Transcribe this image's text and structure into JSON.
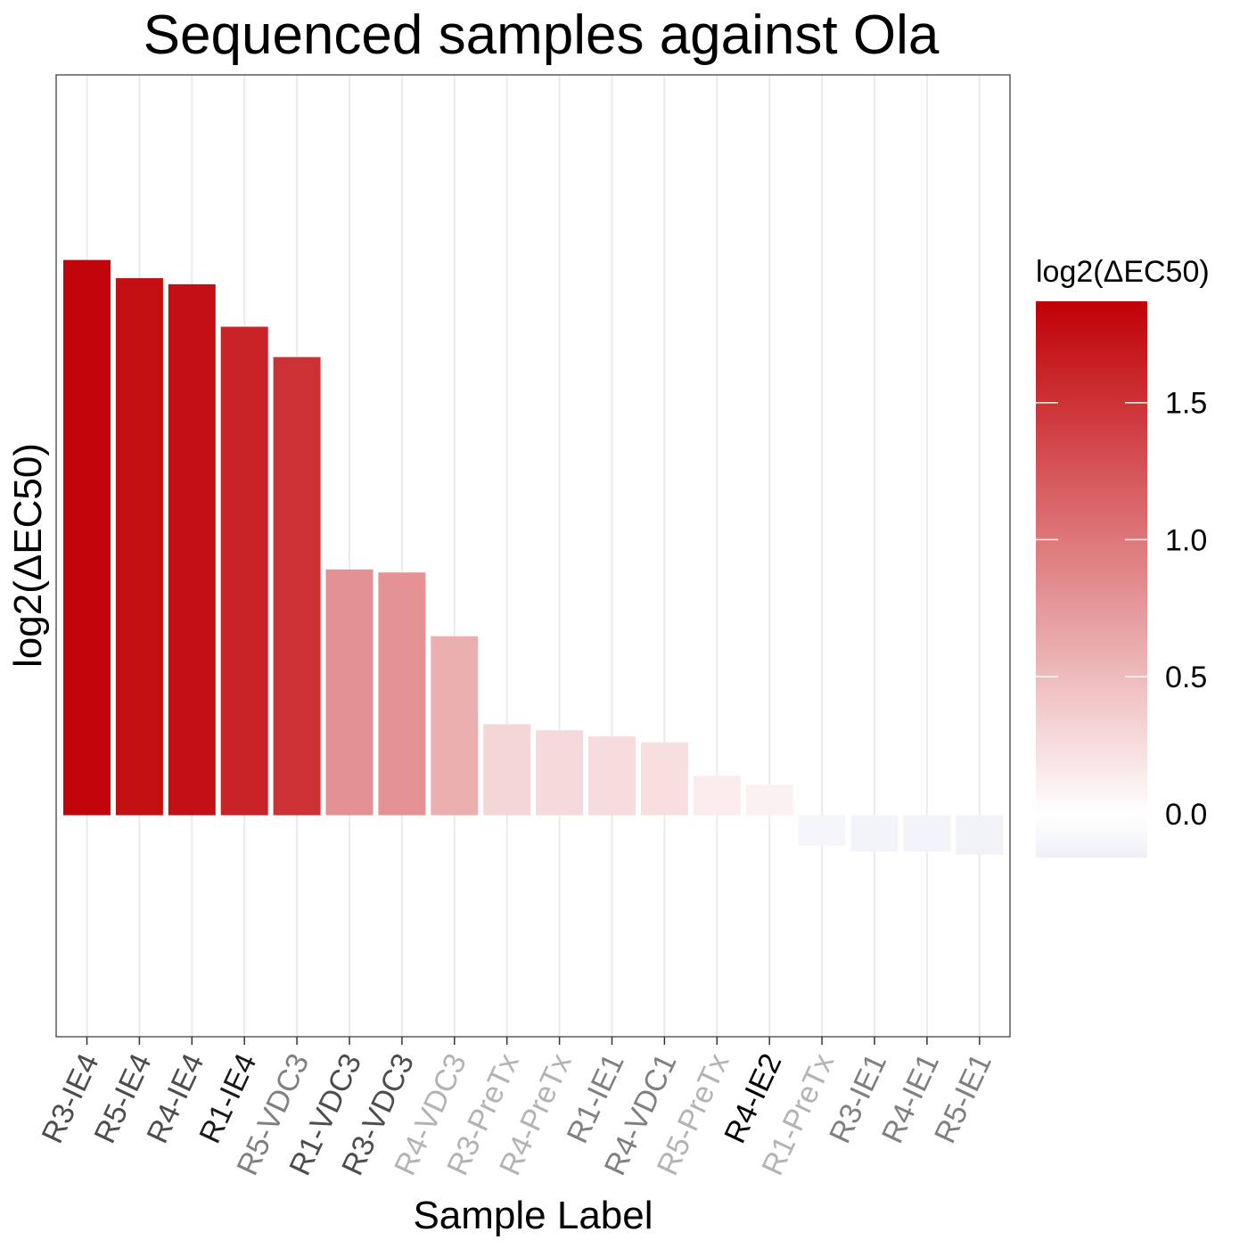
{
  "chart_data": {
    "type": "bar",
    "title": "Sequenced samples against Ola",
    "xlabel": "Sample Label",
    "ylabel": "log2(ΔEC50)",
    "categories": [
      "R3-IE4",
      "R5-IE4",
      "R4-IE4",
      "R1-IE4",
      "R5-VDC3",
      "R1-VDC3",
      "R3-VDC3",
      "R4-VDC3",
      "R3-PreTx",
      "R4-PreTx",
      "R1-IE1",
      "R4-VDC1",
      "R5-PreTx",
      "R4-IE2",
      "R1-PreTx",
      "R3-IE1",
      "R4-IE1",
      "R5-IE1"
    ],
    "values": [
      1.83,
      1.77,
      1.75,
      1.61,
      1.51,
      0.81,
      0.8,
      0.59,
      0.3,
      0.28,
      0.26,
      0.24,
      0.13,
      0.1,
      -0.1,
      -0.12,
      -0.12,
      -0.13
    ],
    "label_colors": [
      "#4d4d4d",
      "#4d4d4d",
      "#4d4d4d",
      "#1a1a1a",
      "#808080",
      "#4d4d4d",
      "#4d4d4d",
      "#b3b3b3",
      "#b3b3b3",
      "#b3b3b3",
      "#808080",
      "#808080",
      "#b3b3b3",
      "#000000",
      "#b3b3b3",
      "#808080",
      "#808080",
      "#808080"
    ],
    "ylim": [
      -0.73,
      2.44
    ],
    "grid": "vertical major lines only",
    "y_ticks_shown": false,
    "legend": {
      "title": "log2(ΔEC50)",
      "position": "right",
      "ticks": [
        "1.5",
        "1.0",
        "0.5",
        "0.0"
      ],
      "tick_values": [
        1.5,
        1.0,
        0.5,
        0.0
      ],
      "range": [
        -0.16,
        1.87
      ]
    },
    "colors": {
      "low": "#eef0f7",
      "mid": "#ffffff",
      "high": "#c00005"
    }
  }
}
